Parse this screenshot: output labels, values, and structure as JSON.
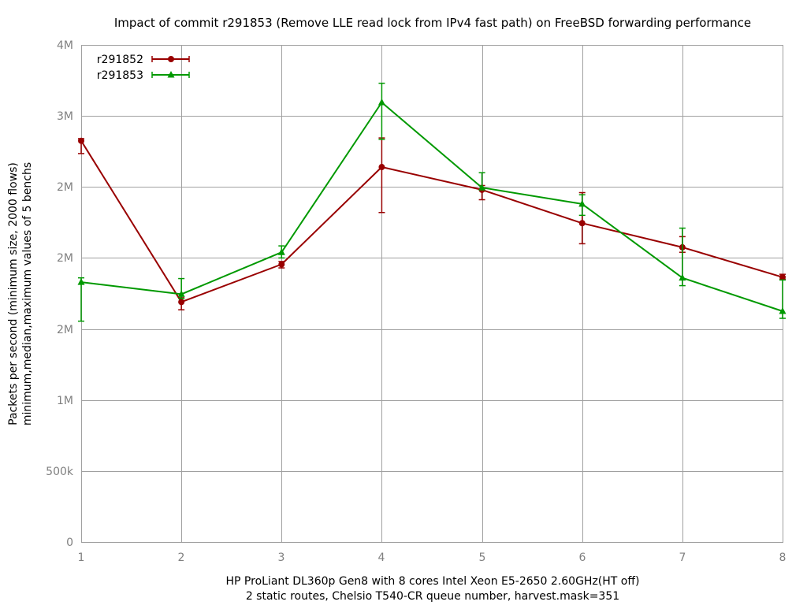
{
  "chart_data": {
    "type": "line",
    "title": "Impact of commit r291853 (Remove LLE read lock from IPv4 fast path) on FreeBSD forwarding performance",
    "xlabel": [
      "HP ProLiant DL360p Gen8 with 8 cores Intel Xeon E5-2650 2.60GHz(HT off)",
      "2 static routes, Chelsio T540-CR queue number, harvest.mask=351"
    ],
    "ylabel": [
      "Packets per second (minimum size, 2000 flows)",
      "minimum,median,maximum values of 5 benchs"
    ],
    "x": [
      1,
      2,
      3,
      4,
      5,
      6,
      7,
      8
    ],
    "xlim": [
      1,
      8
    ],
    "ylim": [
      0,
      3500000
    ],
    "x_ticks": [
      "1",
      "2",
      "3",
      "4",
      "5",
      "6",
      "7",
      "8"
    ],
    "y_ticks": [
      {
        "value": 0,
        "label": "0"
      },
      {
        "value": 500000,
        "label": "500k"
      },
      {
        "value": 1000000,
        "label": "1M"
      },
      {
        "value": 1500000,
        "label": "2M"
      },
      {
        "value": 2000000,
        "label": "2M"
      },
      {
        "value": 2500000,
        "label": "2M"
      },
      {
        "value": 3000000,
        "label": "3M"
      },
      {
        "value": 3500000,
        "label": "4M"
      }
    ],
    "grid": true,
    "legend_position": "top-left",
    "series": [
      {
        "name": "r291852",
        "color": "#990000",
        "marker": "circle",
        "median": [
          2825000,
          1690000,
          1955000,
          2640000,
          2480000,
          2245000,
          2075000,
          1865000
        ],
        "min": [
          2735000,
          1635000,
          1930000,
          2320000,
          2410000,
          2100000,
          2040000,
          1850000
        ],
        "max": [
          2840000,
          1720000,
          1975000,
          2845000,
          2510000,
          2460000,
          2150000,
          1885000
        ]
      },
      {
        "name": "r291853",
        "color": "#009900",
        "marker": "triangle",
        "median": [
          1830000,
          1745000,
          2040000,
          3095000,
          2495000,
          2380000,
          1860000,
          1625000
        ],
        "min": [
          1555000,
          1715000,
          2000000,
          2835000,
          2480000,
          2300000,
          1805000,
          1575000
        ],
        "max": [
          1860000,
          1855000,
          2085000,
          3230000,
          2600000,
          2445000,
          2210000,
          1845000
        ]
      }
    ]
  }
}
